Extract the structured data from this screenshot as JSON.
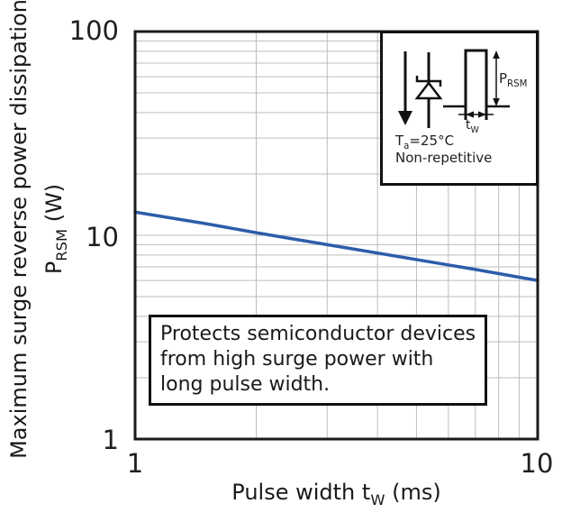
{
  "y_axis": {
    "title_line1": "Maximum surge reverse power dissipation",
    "title2_pre": "P",
    "title2_sub": "RSM",
    "title2_post": " (W)",
    "ticks": [
      "100",
      "10",
      "1"
    ]
  },
  "x_axis": {
    "title_pre": "Pulse width t",
    "title_sub": "W",
    "title_post": " (ms)",
    "ticks": [
      "1",
      "10"
    ]
  },
  "annotation": {
    "lines": [
      "Protects semiconductor devices",
      "from high surge power with",
      "long pulse width."
    ]
  },
  "inset": {
    "prsm_pre": "P",
    "prsm_sub": "RSM",
    "tw_pre": "t",
    "tw_sub": "W",
    "ta_pre": "T",
    "ta_sub": "a",
    "ta_post": "=25°C",
    "note": "Non-repetitive"
  },
  "colors": {
    "line": "#2d5da9",
    "grid": "#bdbdbd",
    "axis": "#1a1a1a"
  },
  "chart_data": {
    "type": "line",
    "title": "",
    "xlabel": "Pulse width tW (ms)",
    "ylabel": "Maximum surge reverse power dissipation PRSM (W)",
    "x_scale": "log",
    "y_scale": "log",
    "xlim": [
      1,
      10
    ],
    "ylim": [
      1,
      100
    ],
    "x_ticks": [
      1,
      10
    ],
    "y_ticks": [
      1,
      10,
      100
    ],
    "grid": "minor log gridlines on",
    "legend": "none",
    "conditions": "Ta=25degC, Non-repetitive",
    "series": [
      {
        "name": "Maximum surge reverse power dissipation PRSM vs pulse width tW",
        "color": "#2d5da9",
        "x": [
          1,
          1.5,
          2,
          3,
          5,
          7,
          10
        ],
        "y": [
          13,
          11.4,
          10.3,
          9.0,
          7.6,
          6.8,
          6.0
        ]
      }
    ]
  }
}
